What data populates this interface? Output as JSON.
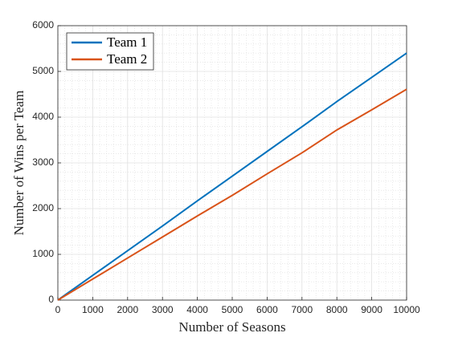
{
  "chart_data": {
    "type": "line",
    "x_label": "Number of Seasons",
    "y_label": "Number of Wins per Team",
    "x": [
      0,
      1000,
      2000,
      3000,
      4000,
      5000,
      6000,
      7000,
      8000,
      9000,
      10000
    ],
    "series": [
      {
        "name": "Team 1",
        "color": "#0072bd",
        "values": [
          0,
          540,
          1080,
          1620,
          2170,
          2710,
          3250,
          3790,
          4340,
          4870,
          5400
        ]
      },
      {
        "name": "Team 2",
        "color": "#d95319",
        "values": [
          0,
          460,
          920,
          1380,
          1840,
          2290,
          2760,
          3220,
          3720,
          4160,
          4610
        ]
      }
    ],
    "xlim": [
      0,
      10000
    ],
    "xticks": [
      0,
      1000,
      2000,
      3000,
      4000,
      5000,
      6000,
      7000,
      8000,
      9000,
      10000
    ],
    "ylim": [
      0,
      6000
    ],
    "yticks": [
      0,
      1000,
      2000,
      3000,
      4000,
      5000,
      6000
    ],
    "grid": true,
    "minor_grid": true,
    "legend": "northwest"
  }
}
